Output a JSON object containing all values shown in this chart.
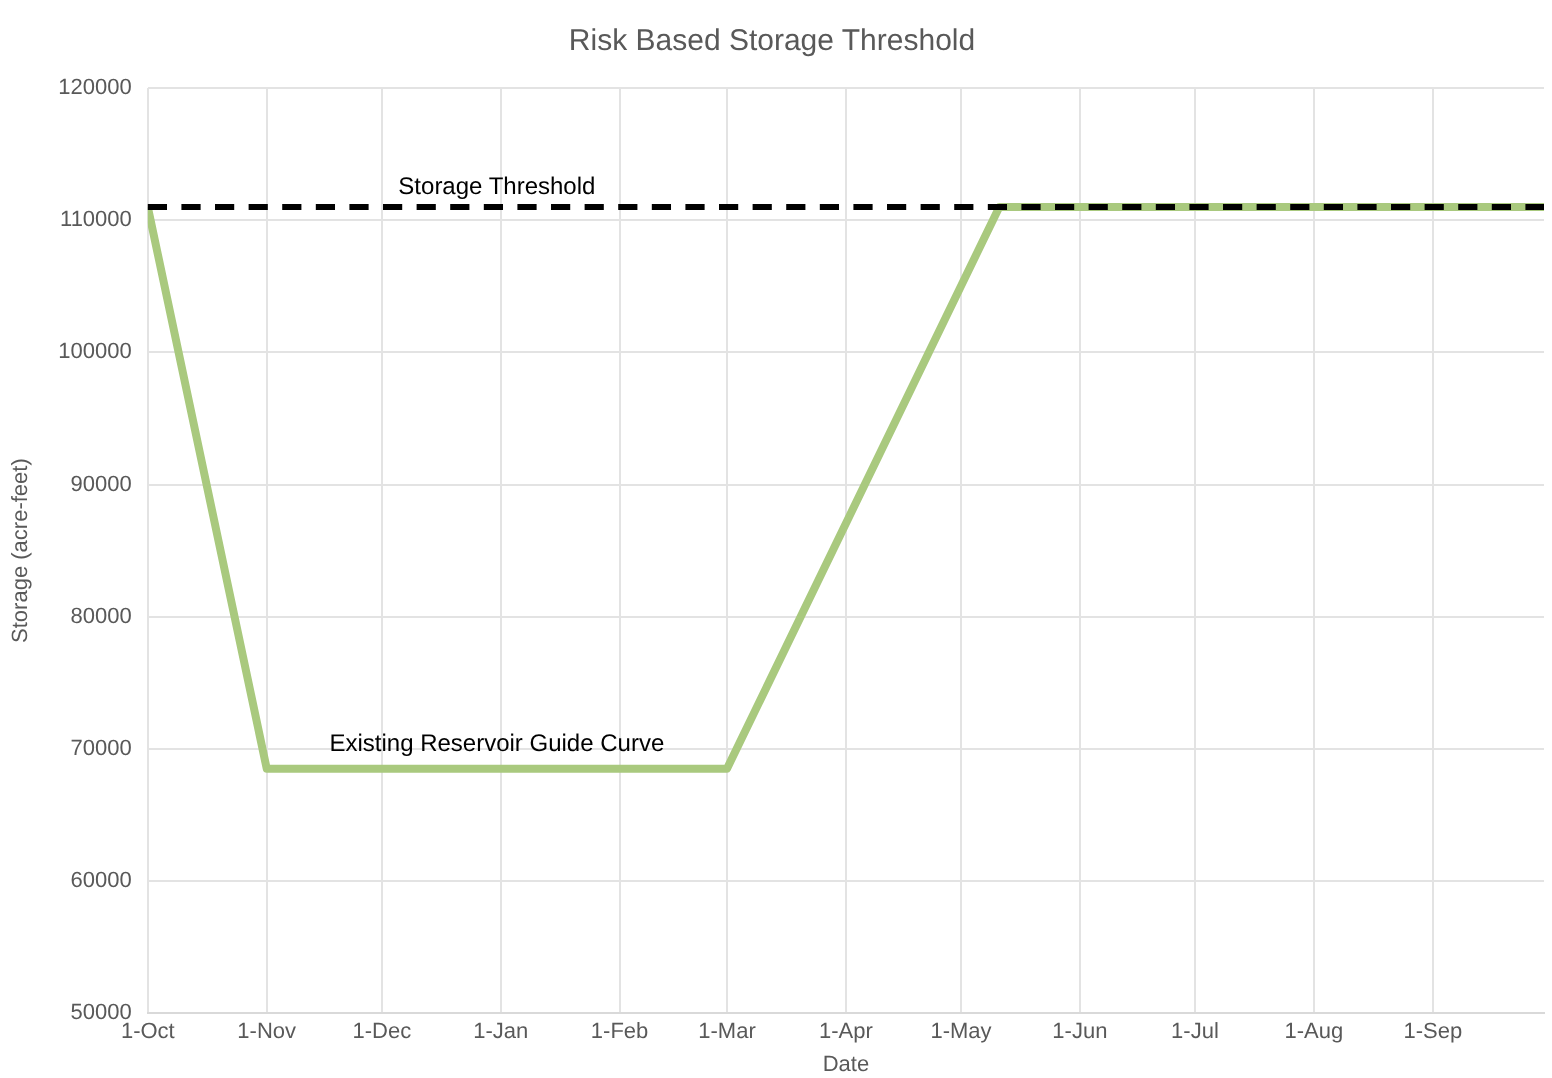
{
  "chart_data": {
    "type": "line",
    "title": "Risk Based Storage Threshold",
    "xlabel": "Date",
    "ylabel": "Storage (acre-feet)",
    "x": [
      "2000-10-01",
      "2000-11-01",
      "2001-03-01",
      "2001-05-11",
      "2001-09-30"
    ],
    "series": [
      {
        "color": "#a9c97e",
        "values": [
          111000,
          68500,
          68500,
          111000,
          111000
        ]
      }
    ],
    "annotations": [
      "Existing Reservoir Guide Curve"
    ],
    "xlim": [
      "2000-10-01",
      "2001-09-30"
    ],
    "xticks": [
      {
        "value": "2000-10-01",
        "label": "1-Oct"
      },
      {
        "value": "2000-11-01",
        "label": "1-Nov"
      },
      {
        "value": "2000-12-01",
        "label": "1-Dec"
      },
      {
        "value": "2001-01-01",
        "label": "1-Jan"
      },
      {
        "value": "2001-02-01",
        "label": "1-Feb"
      },
      {
        "value": "2001-03-01",
        "label": "1-Mar"
      },
      {
        "value": "2001-04-01",
        "label": "1-Apr"
      },
      {
        "value": "2001-05-01",
        "label": "1-May"
      },
      {
        "value": "2001-06-01",
        "label": "1-Jun"
      },
      {
        "value": "2001-07-01",
        "label": "1-Jul"
      },
      {
        "value": "2001-08-01",
        "label": "1-Aug"
      },
      {
        "value": "2001-09-01",
        "label": "1-Sep"
      }
    ],
    "ylim": [
      50000,
      120000
    ],
    "yticks": [
      50000,
      60000,
      70000,
      80000,
      90000,
      100000,
      110000,
      120000
    ],
    "ref_lines": [
      {
        "axis": "y",
        "value": 111000,
        "label": "Storage Threshold",
        "color": "#000000",
        "line_style": "dashed"
      }
    ],
    "grid": true,
    "marker": "none",
    "line_style": "solid",
    "legend": false
  }
}
